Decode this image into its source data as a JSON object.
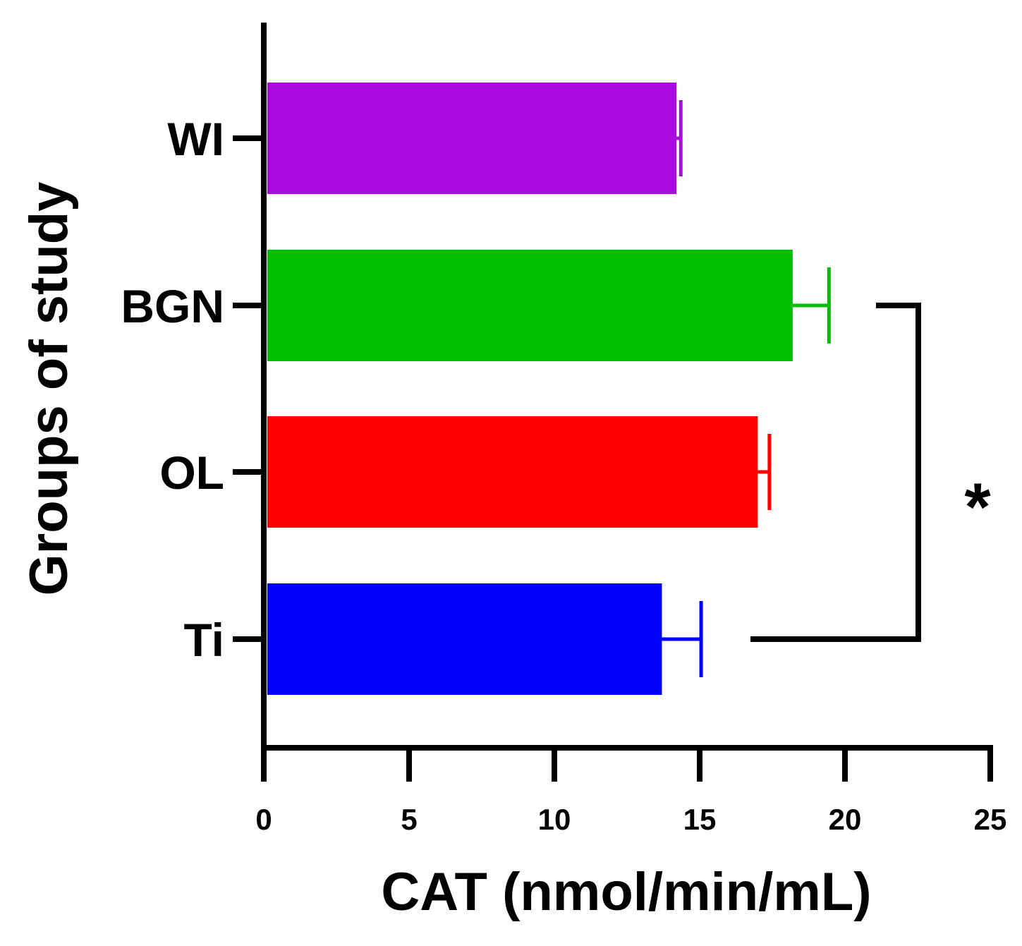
{
  "chart_data": {
    "type": "bar",
    "orientation": "horizontal",
    "title": "",
    "xlabel": "CAT (nmol/min/mL)",
    "ylabel": "Groups of study",
    "xlim": [
      0,
      25
    ],
    "xticks": [
      0,
      5,
      10,
      15,
      20,
      25
    ],
    "xtick_labels": [
      "0",
      "5",
      "10",
      "15",
      "20",
      "25"
    ],
    "grid": false,
    "legend": "none",
    "categories": [
      "WI",
      "BGN",
      "OL",
      "Ti"
    ],
    "values": [
      14.2,
      18.2,
      17.0,
      13.7
    ],
    "errors": [
      0.15,
      1.25,
      0.4,
      1.35
    ],
    "colors": [
      "#aa0ae0",
      "#00bf00",
      "#ff0000",
      "#0000ff"
    ],
    "significance": {
      "from": "BGN",
      "to": "Ti",
      "label": "*"
    }
  }
}
